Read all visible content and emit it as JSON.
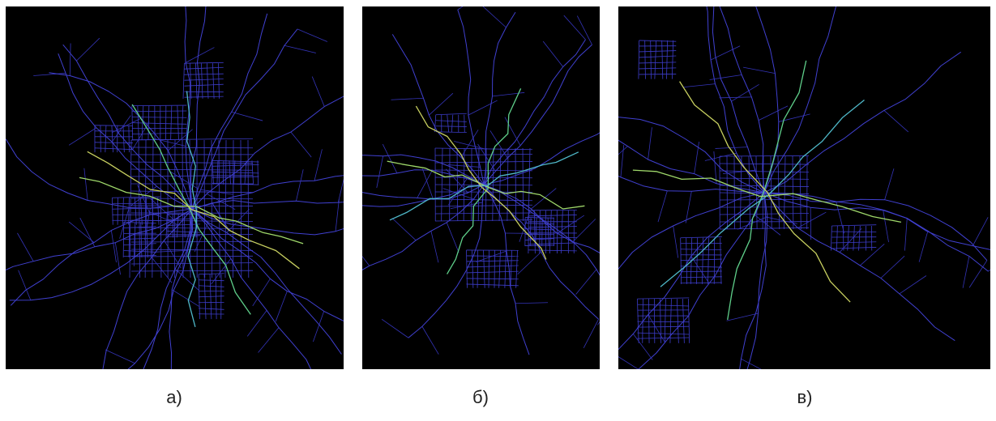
{
  "panels": [
    {
      "caption": "а)"
    },
    {
      "caption": "б)"
    },
    {
      "caption": "в)"
    }
  ]
}
